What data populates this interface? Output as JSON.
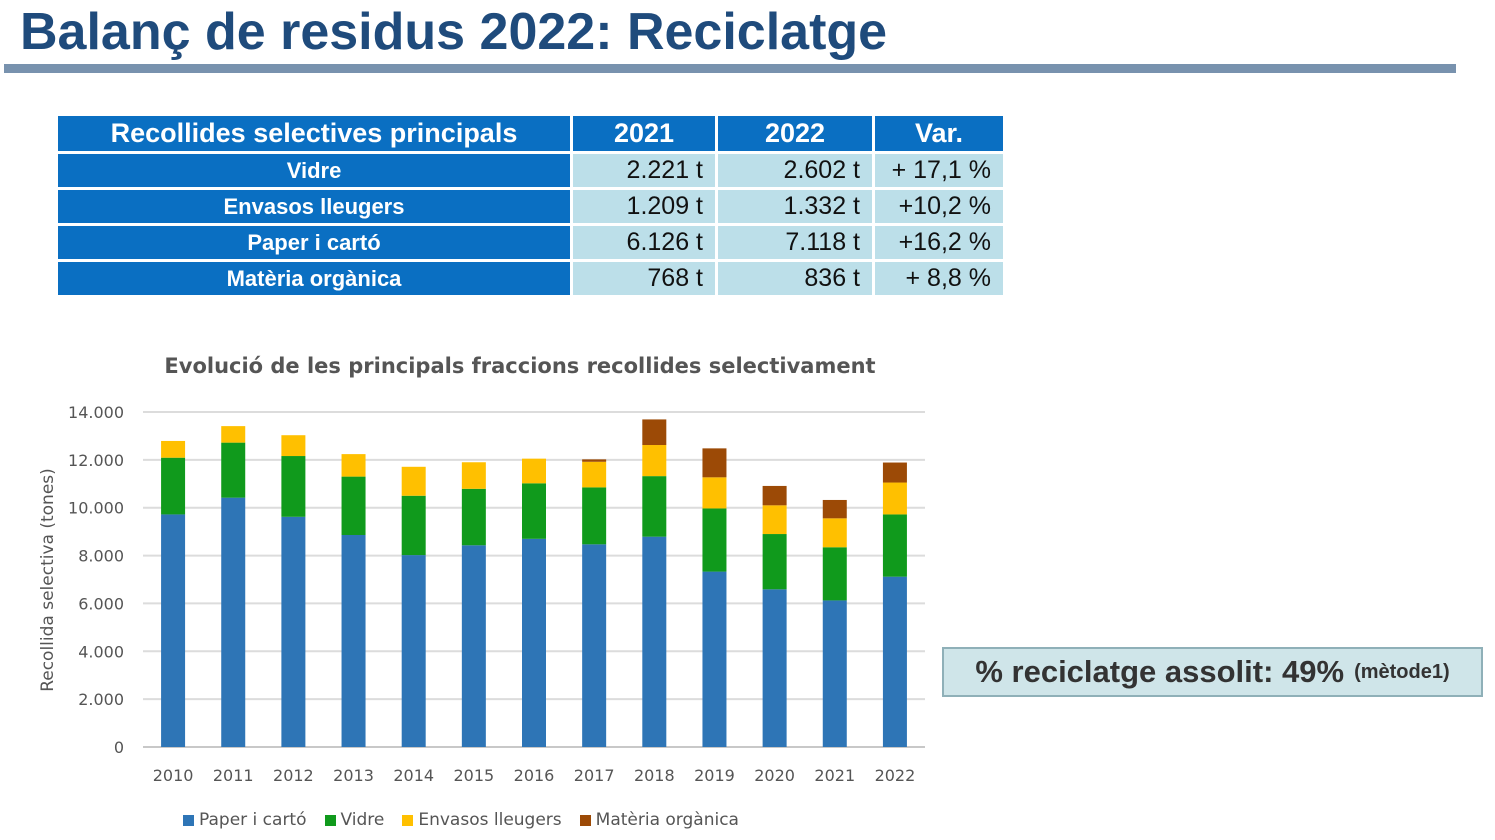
{
  "header": {
    "title": "Balanç de residus 2022: Reciclatge"
  },
  "table": {
    "columns": [
      "Recollides selectives principals",
      "2021",
      "2022",
      "Var."
    ],
    "rows": [
      {
        "label": "Vidre",
        "y2021": "2.221 t",
        "y2022": "2.602 t",
        "var": "+ 17,1 %"
      },
      {
        "label": "Envasos lleugers",
        "y2021": "1.209 t",
        "y2022": "1.332 t",
        "var": "+10,2 %"
      },
      {
        "label": "Paper i cartó",
        "y2021": "6.126 t",
        "y2022": "7.118 t",
        "var": "+16,2 %"
      },
      {
        "label": "Matèria orgànica",
        "y2021": "768 t",
        "y2022": "836 t",
        "var": "+ 8,8 %"
      }
    ]
  },
  "recycling": {
    "text": "% reciclatge assolit: 49%",
    "note": "(mètode1)"
  },
  "chart_data": {
    "type": "bar",
    "stacked": true,
    "title": "Evolució de les principals fraccions recollides selectivament",
    "xlabel": "",
    "ylabel": "Recollida selectiva (tones)",
    "ylim": [
      0,
      14000
    ],
    "yticks": [
      0,
      2000,
      4000,
      6000,
      8000,
      10000,
      12000,
      14000
    ],
    "ytick_labels": [
      "0",
      "2.000",
      "4.000",
      "6.000",
      "8.000",
      "10.000",
      "12.000",
      "14.000"
    ],
    "grid": true,
    "legend_position": "bottom",
    "categories": [
      "2010",
      "2011",
      "2012",
      "2013",
      "2014",
      "2015",
      "2016",
      "2017",
      "2018",
      "2019",
      "2020",
      "2021",
      "2022"
    ],
    "series": [
      {
        "name": "Paper i cartó",
        "color": "#2e75b6",
        "values": [
          9720,
          10420,
          9620,
          8860,
          8020,
          8430,
          8700,
          8470,
          8790,
          7330,
          6590,
          6126,
          7118
        ]
      },
      {
        "name": "Vidre",
        "color": "#109a1c",
        "values": [
          2370,
          2300,
          2540,
          2440,
          2480,
          2360,
          2320,
          2380,
          2530,
          2640,
          2310,
          2221,
          2602
        ]
      },
      {
        "name": "Envasos lleugers",
        "color": "#ffc000",
        "values": [
          700,
          690,
          870,
          940,
          1210,
          1110,
          1030,
          1070,
          1300,
          1300,
          1200,
          1209,
          1332
        ]
      },
      {
        "name": "Matèria orgànica",
        "color": "#9c4a06",
        "values": [
          0,
          0,
          0,
          0,
          0,
          0,
          0,
          100,
          1070,
          1210,
          810,
          768,
          836
        ]
      }
    ]
  }
}
